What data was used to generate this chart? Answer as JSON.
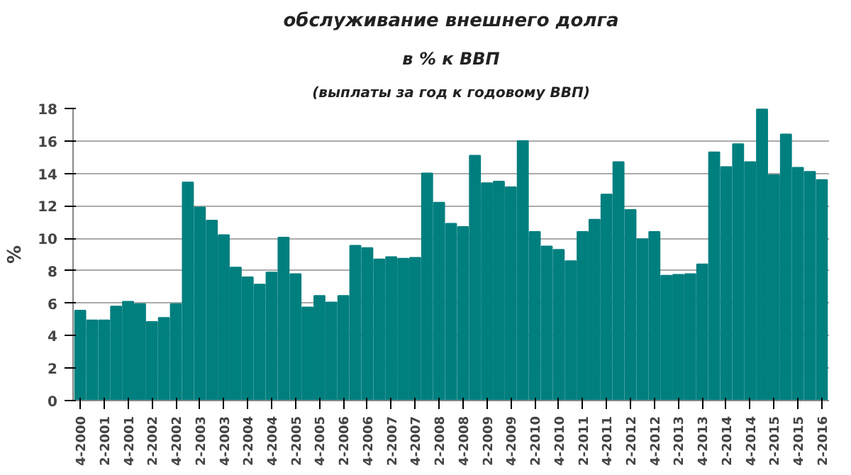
{
  "chart_data": {
    "type": "bar",
    "title": "обслуживание внешнего долга",
    "subtitle": "в % к ВВП",
    "annotations": [
      "(выплаты за год к годовому ВВП)"
    ],
    "ylabel": "%",
    "categories": [
      "4-2000",
      null,
      "2-2001",
      null,
      "4-2001",
      null,
      "2-2002",
      null,
      "4-2002",
      null,
      "2-2003",
      null,
      "4-2003",
      null,
      "2-2004",
      null,
      "4-2004",
      null,
      "2-2005",
      null,
      "4-2005",
      null,
      "2-2006",
      null,
      "4-2006",
      null,
      "2-2007",
      null,
      "4-2007",
      null,
      "2-2008",
      null,
      "4-2008",
      null,
      "2-2009",
      null,
      "4-2009",
      null,
      "2-2010",
      null,
      "4-2010",
      null,
      "2-2011",
      null,
      "4-2011",
      null,
      "2-2012",
      null,
      "4-2012",
      null,
      "2-2013",
      null,
      "4-2013",
      null,
      "2-2014",
      null,
      "4-2014",
      null,
      "2-2015",
      null,
      "4-2015",
      null,
      "2-2016"
    ],
    "values": [
      5.55,
      4.95,
      4.95,
      5.8,
      6.1,
      5.95,
      4.85,
      5.1,
      5.95,
      13.45,
      11.9,
      11.1,
      10.2,
      8.2,
      7.6,
      7.15,
      7.9,
      10.05,
      7.8,
      5.75,
      6.45,
      6.05,
      6.45,
      9.55,
      9.4,
      8.7,
      8.85,
      8.75,
      8.8,
      14.0,
      12.2,
      10.9,
      10.7,
      15.1,
      13.4,
      13.5,
      13.15,
      16.0,
      10.4,
      9.5,
      9.3,
      8.6,
      10.4,
      11.15,
      12.7,
      14.7,
      11.75,
      9.95,
      10.4,
      7.7,
      7.75,
      7.8,
      8.4,
      15.3,
      14.4,
      15.8,
      14.7,
      17.95,
      13.9,
      16.4,
      14.35,
      14.1,
      13.6
    ],
    "color": "#007f7f",
    "ylim": [
      0,
      18
    ],
    "yticks": [
      0,
      2,
      4,
      6,
      8,
      10,
      12,
      14,
      16,
      18
    ],
    "grid": "y"
  }
}
